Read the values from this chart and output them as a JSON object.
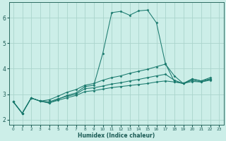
{
  "xlabel": "Humidex (Indice chaleur)",
  "bg_color": "#cceee8",
  "grid_color": "#aad4cc",
  "line_color": "#1a7a6e",
  "xlim": [
    -0.5,
    23.5
  ],
  "ylim": [
    1.8,
    6.6
  ],
  "yticks": [
    2,
    3,
    4,
    5,
    6
  ],
  "xticks": [
    0,
    1,
    2,
    3,
    4,
    5,
    6,
    7,
    8,
    9,
    10,
    11,
    12,
    13,
    14,
    15,
    16,
    17,
    18,
    19,
    20,
    21,
    22,
    23
  ],
  "series": [
    {
      "x": [
        0,
        1,
        2,
        3,
        4,
        5,
        6,
        7,
        8,
        9,
        10,
        11,
        12,
        13,
        14,
        15,
        16,
        17,
        18,
        19,
        20,
        21,
        22
      ],
      "y": [
        2.7,
        2.25,
        2.85,
        2.73,
        2.65,
        2.8,
        2.95,
        3.05,
        3.3,
        3.35,
        4.6,
        6.2,
        6.25,
        6.1,
        6.27,
        6.3,
        5.8,
        4.2,
        3.5,
        3.42,
        3.6,
        3.52,
        3.6
      ]
    },
    {
      "x": [
        0,
        1,
        2,
        3,
        4,
        5,
        6,
        7,
        8,
        9,
        10,
        11,
        12,
        13,
        14,
        15,
        16,
        17,
        18,
        19,
        20,
        21,
        22
      ],
      "y": [
        2.7,
        2.25,
        2.85,
        2.73,
        2.78,
        2.92,
        3.08,
        3.18,
        3.35,
        3.42,
        3.55,
        3.65,
        3.72,
        3.82,
        3.9,
        3.98,
        4.08,
        4.18,
        3.72,
        3.42,
        3.6,
        3.52,
        3.65
      ]
    },
    {
      "x": [
        0,
        1,
        2,
        3,
        4,
        5,
        6,
        7,
        8,
        9,
        10,
        11,
        12,
        13,
        14,
        15,
        16,
        17,
        18,
        19,
        20,
        21,
        22
      ],
      "y": [
        2.7,
        2.25,
        2.85,
        2.73,
        2.7,
        2.82,
        2.92,
        3.0,
        3.22,
        3.25,
        3.32,
        3.4,
        3.45,
        3.52,
        3.58,
        3.65,
        3.72,
        3.78,
        3.55,
        3.42,
        3.55,
        3.48,
        3.58
      ]
    },
    {
      "x": [
        0,
        1,
        2,
        3,
        4,
        5,
        6,
        7,
        8,
        9,
        10,
        11,
        12,
        13,
        14,
        15,
        16,
        17,
        18,
        19,
        20,
        21,
        22
      ],
      "y": [
        2.7,
        2.25,
        2.85,
        2.73,
        2.66,
        2.76,
        2.86,
        2.95,
        3.1,
        3.14,
        3.2,
        3.26,
        3.3,
        3.34,
        3.38,
        3.42,
        3.48,
        3.52,
        3.48,
        3.42,
        3.5,
        3.48,
        3.55
      ]
    }
  ]
}
